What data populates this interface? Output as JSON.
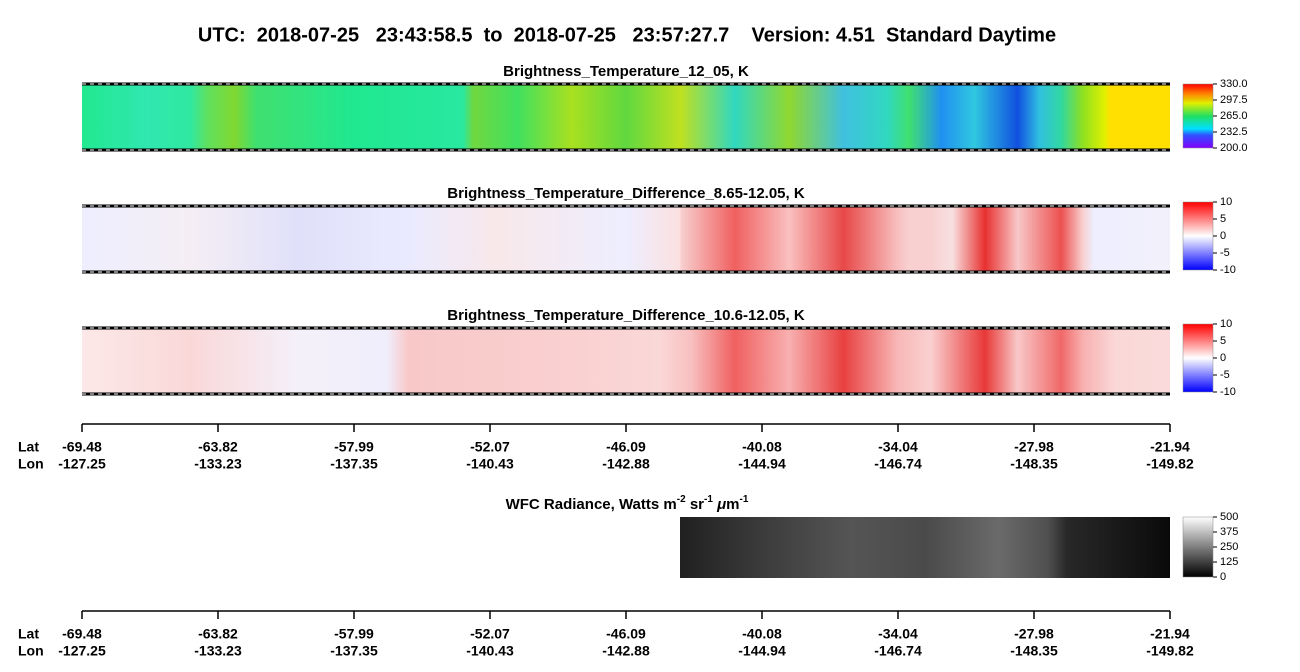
{
  "title": "UTC:  2018-07-25   23:43:58.5  to  2018-07-25   23:57:27.7    Version: 4.51  Standard Daytime",
  "chart_data": [
    {
      "type": "heatmap",
      "title": "Brightness_Temperature_12_05, K",
      "zlim": [
        200,
        330
      ],
      "zticks": [
        {
          "value": 330,
          "label": "330.0"
        },
        {
          "value": 297.5,
          "label": "297.5"
        },
        {
          "value": 265,
          "label": "265.0"
        },
        {
          "value": 232.5,
          "label": "232.5"
        },
        {
          "value": 200,
          "label": "200.0"
        }
      ]
    },
    {
      "type": "heatmap",
      "title": "Brightness_Temperature_Difference_8.65-12.05, K",
      "zlim": [
        -10,
        10
      ],
      "zticks": [
        10,
        5,
        0,
        -5,
        -10
      ]
    },
    {
      "type": "heatmap",
      "title": "Brightness_Temperature_Difference_10.6-12.05, K",
      "zlim": [
        -10,
        10
      ],
      "zticks": [
        10,
        5,
        0,
        -5,
        -10
      ]
    },
    {
      "type": "heatmap",
      "title_parts": [
        "WFC Radiance, Watts m",
        "-2",
        " sr",
        "-1",
        " μ",
        "m",
        "-1"
      ],
      "zlim": [
        0,
        500
      ],
      "zticks": [
        500,
        375,
        250,
        125,
        0
      ]
    }
  ],
  "track_axis": {
    "lat_label": "Lat",
    "lon_label": "Lon",
    "lat": [
      -69.48,
      -63.82,
      -57.99,
      -52.07,
      -46.09,
      -40.08,
      -34.04,
      -27.98,
      -21.94
    ],
    "lon": [
      -127.25,
      -133.23,
      -137.35,
      -140.43,
      -142.88,
      -144.94,
      -146.74,
      -148.35,
      -149.82
    ]
  }
}
